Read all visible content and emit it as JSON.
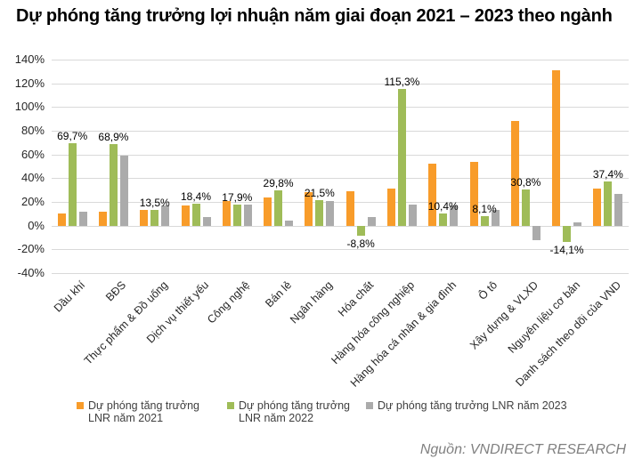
{
  "title": "Dự phóng tăng trưởng lợi nhuận năm giai đoạn 2021 – 2023 theo ngành",
  "source": "Nguồn: VNDIRECT RESEARCH",
  "colors": {
    "s2021": "#F89C2A",
    "s2022": "#9FBC58",
    "s2023": "#ABABAB",
    "gridline": "#D9D9D9",
    "axis_text": "#262626",
    "data_label_text": "#000000",
    "legend_text": "#404040",
    "source_text": "#808080",
    "title_text": "#000000"
  },
  "chart_data": {
    "type": "bar",
    "title": "Dự phóng tăng trưởng lợi nhuận năm giai đoạn 2021 – 2023 theo ngành",
    "categories": [
      "Dầu khí",
      "BĐS",
      "Thực phẩm & Đồ uống",
      "Dịch vụ thiết yếu",
      "Công nghệ",
      "Bán lẻ",
      "Ngân hàng",
      "Hóa chất",
      "Hàng hóa công nghiệp",
      "Hàng hóa cá nhân & gia đình",
      "Ô tô",
      "Xây dựng & VLXD",
      "Nguyên liệu cơ bản",
      "Danh sách theo dõi của VND"
    ],
    "series": [
      {
        "name": "Dự phóng tăng trưởng LNR năm 2021",
        "legend_lines": [
          "Dự phóng tăng trưởng",
          "LNR năm 2021"
        ],
        "color_key": "s2021",
        "values": [
          10,
          12,
          13,
          17,
          21,
          24,
          28,
          29,
          31,
          52,
          54,
          88,
          131,
          31
        ]
      },
      {
        "name": "Dự phóng tăng trưởng LNR năm 2022",
        "legend_lines": [
          "Dự phóng tăng trưởng",
          "LNR năm 2022"
        ],
        "color_key": "s2022",
        "values": [
          69.7,
          68.9,
          13.5,
          18.4,
          17.9,
          29.8,
          21.5,
          -8.8,
          115.3,
          10.4,
          8.1,
          30.8,
          -14.1,
          37.4
        ],
        "data_labels": [
          "69,7%",
          "68,9%",
          "13,5%",
          "18,4%",
          "17,9%",
          "29,8%",
          "21,5%",
          "-8,8%",
          "115,3%",
          "10,4%",
          "8,1%",
          "30,8%",
          "-14,1%",
          "37,4%"
        ]
      },
      {
        "name": "Dự phóng tăng trưởng LNR năm 2023",
        "legend_lines": [
          "Dự phóng tăng trưởng LNR năm 2023"
        ],
        "color_key": "s2023",
        "values": [
          12,
          59,
          17,
          7,
          18,
          4,
          21,
          7,
          18,
          17,
          13,
          -12,
          3,
          27
        ]
      }
    ],
    "ylim": [
      -40,
      140
    ],
    "ytick_step": 20,
    "yticks": [
      "140%",
      "120%",
      "100%",
      "80%",
      "60%",
      "40%",
      "20%",
      "0%",
      "-20%",
      "-40%"
    ],
    "grid": true,
    "legend_position": "bottom"
  }
}
